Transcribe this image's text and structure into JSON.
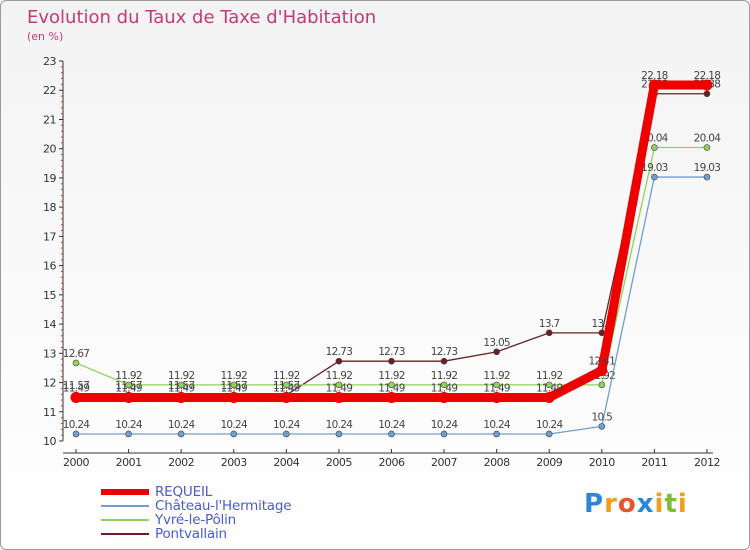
{
  "chart_data": {
    "type": "line",
    "title": "Evolution du Taux de Taxe d'Habitation",
    "subtitle": "(en %)",
    "x": [
      "2000",
      "2001",
      "2002",
      "2003",
      "2004",
      "2005",
      "2006",
      "2007",
      "2008",
      "2009",
      "2010",
      "2011",
      "2012"
    ],
    "ylim": [
      10,
      23
    ],
    "yticks": [
      "10",
      "11",
      "12",
      "13",
      "14",
      "15",
      "16",
      "17",
      "18",
      "19",
      "20",
      "21",
      "22",
      "23"
    ],
    "grid": false,
    "legend_position": "bottom-left",
    "series": [
      {
        "name": "Pontvallain",
        "color": "#6a1f26",
        "values": [
          11.57,
          11.57,
          11.57,
          11.57,
          11.57,
          12.73,
          12.73,
          12.73,
          13.05,
          13.7,
          13.7,
          21.88,
          21.88
        ],
        "labels": [
          "11.57",
          "11.57",
          "11.57",
          "11.57",
          "11.57",
          "12.73",
          "12.73",
          "12.73",
          "13.05",
          "13.7",
          "13.7",
          "21.88",
          "21.88"
        ]
      },
      {
        "name": "Yvré-le-Pôlin",
        "color": "#8fd35a",
        "values": [
          12.67,
          11.92,
          11.92,
          11.92,
          11.92,
          11.92,
          11.92,
          11.92,
          11.92,
          11.92,
          11.92,
          20.04,
          20.04
        ],
        "labels": [
          "12.67",
          "11.92",
          "11.92",
          "11.92",
          "11.92",
          "11.92",
          "11.92",
          "11.92",
          "11.92",
          "11.92",
          "11.92",
          "20.04",
          "20.04"
        ]
      },
      {
        "name": "Château-l'Hermitage",
        "color": "#6f9fcf",
        "values": [
          10.24,
          10.24,
          10.24,
          10.24,
          10.24,
          10.24,
          10.24,
          10.24,
          10.24,
          10.24,
          10.5,
          19.03,
          19.03
        ],
        "labels": [
          "10.24",
          "10.24",
          "10.24",
          "10.24",
          "10.24",
          "10.24",
          "10.24",
          "10.24",
          "10.24",
          "10.24",
          "10.5",
          "19.03",
          "19.03"
        ]
      },
      {
        "name": "REQUEIL",
        "color": "#ee0000",
        "values": [
          11.49,
          11.49,
          11.49,
          11.49,
          11.49,
          11.49,
          11.49,
          11.49,
          11.49,
          11.49,
          12.41,
          22.18,
          22.18
        ],
        "labels": [
          "11.49",
          "11.49",
          "11.49",
          "11.49",
          "11.49",
          "11.49",
          "11.49",
          "11.49",
          "11.49",
          "11.49",
          "12.41",
          "22.18",
          "22.18"
        ]
      }
    ]
  },
  "legend": [
    {
      "label": "REQUEIL",
      "color": "#ee0000",
      "thick": true
    },
    {
      "label": "Château-l'Hermitage",
      "color": "#6f9fcf",
      "thick": false
    },
    {
      "label": "Yvré-le-Pôlin",
      "color": "#8fd35a",
      "thick": false
    },
    {
      "label": "Pontvallain",
      "color": "#6a1f26",
      "thick": false
    }
  ],
  "logo": {
    "text": "Proxiti",
    "letters": [
      "P",
      "r",
      "o",
      "x",
      "i",
      "t",
      "i"
    ],
    "colors": [
      "#2a86d8",
      "#f29d1c",
      "#e8552b",
      "#2a86d8",
      "#f29d1c",
      "#7bbf36",
      "#f29d1c"
    ]
  }
}
